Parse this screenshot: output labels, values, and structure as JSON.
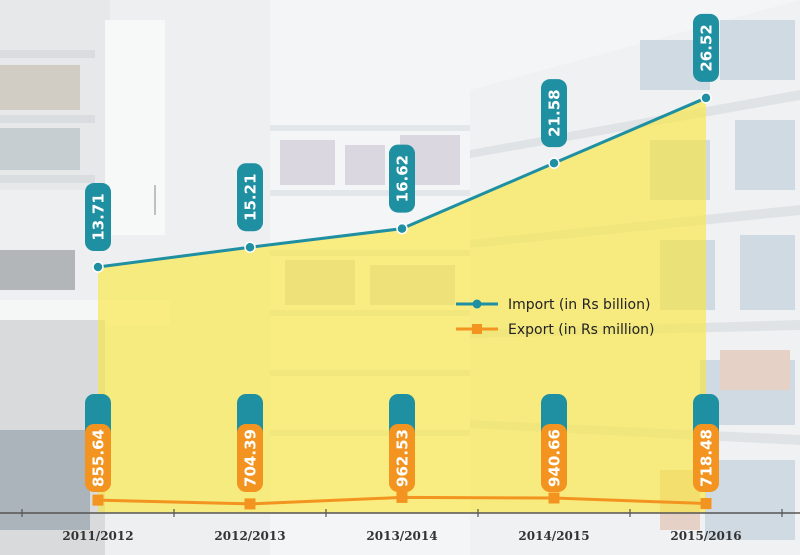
{
  "chart_data": {
    "type": "line",
    "categories": [
      "2011/2012",
      "2012/2013",
      "2013/2014",
      "2014/2015",
      "2015/2016"
    ],
    "series": [
      {
        "name": "Import (in Rs billion)",
        "values": [
          13.71,
          15.21,
          16.62,
          21.58,
          26.52
        ],
        "labels": [
          "13.71",
          "15.21",
          "16.62",
          "21.58",
          "26.52"
        ]
      },
      {
        "name": "Export  (in Rs million)",
        "values": [
          855.64,
          704.39,
          962.53,
          940.66,
          718.48
        ],
        "labels": [
          "855.64",
          "704.39",
          "962.53",
          "940.66",
          "718.48"
        ]
      }
    ],
    "legend": "center-right",
    "grid": false
  },
  "colors": {
    "import": "#1f8fa2",
    "export": "#f39420",
    "area": "#fbe733",
    "axis": "#555555"
  },
  "icons": {
    "background": "pharmacy-shelves-photo"
  }
}
